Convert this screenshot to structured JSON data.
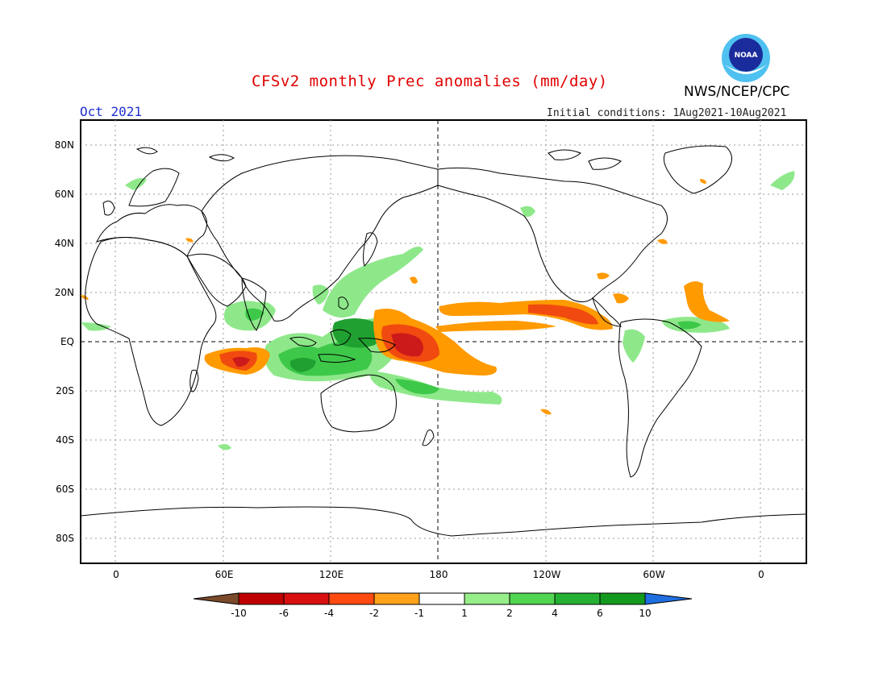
{
  "header": {
    "title": "CFSv2 monthly Prec anomalies (mm/day)",
    "agency": "NWS/NCEP/CPC",
    "valid_month": "Oct 2021",
    "initial_conditions": "Initial conditions: 1Aug2021-10Aug2021",
    "logo_text": "NOAA"
  },
  "map": {
    "lat_labels": [
      "80N",
      "60N",
      "40N",
      "20N",
      "EQ",
      "20S",
      "40S",
      "60S",
      "80S"
    ],
    "lon_labels": [
      "0",
      "60E",
      "120E",
      "180",
      "120W",
      "60W",
      "0"
    ],
    "colors": {
      "dry_strong": "#cc1a1a",
      "dry_mid": "#f04a10",
      "dry_weak": "#ff9a00",
      "wet_weak": "#8ee88a",
      "wet_mid": "#3ec84a",
      "wet_strong": "#20a030"
    }
  },
  "colorbar": {
    "labels": [
      "-10",
      "-6",
      "-4",
      "-2",
      "-1",
      "1",
      "2",
      "4",
      "6",
      "10"
    ],
    "colors": [
      "#7a4a2a",
      "#c00000",
      "#d81010",
      "#ff4a10",
      "#ffa21a",
      "#ffffff",
      "#96ee88",
      "#52d652",
      "#24b032",
      "#139a1e",
      "#1f6fe0"
    ]
  }
}
